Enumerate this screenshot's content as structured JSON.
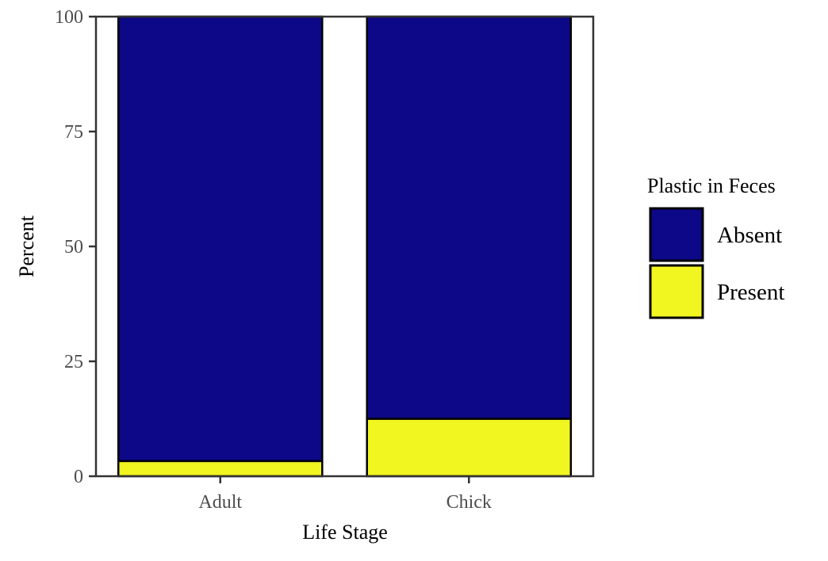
{
  "chart_data": {
    "type": "bar",
    "stacked": true,
    "title": "",
    "xlabel": "Life Stage",
    "ylabel": "Percent",
    "ylim": [
      0,
      100
    ],
    "yticks": [
      0,
      25,
      50,
      75,
      100
    ],
    "categories": [
      "Adult",
      "Chick"
    ],
    "series": [
      {
        "name": "Present",
        "values": [
          3.3,
          12.5
        ],
        "color": "#f1f520"
      },
      {
        "name": "Absent",
        "values": [
          96.7,
          87.5
        ],
        "color": "#0d0887"
      }
    ],
    "legend": {
      "title": "Plastic in Feces",
      "placement": "right",
      "items": [
        {
          "label": "Absent",
          "color": "#0d0887"
        },
        {
          "label": "Present",
          "color": "#f1f520"
        }
      ]
    },
    "grid": false
  }
}
